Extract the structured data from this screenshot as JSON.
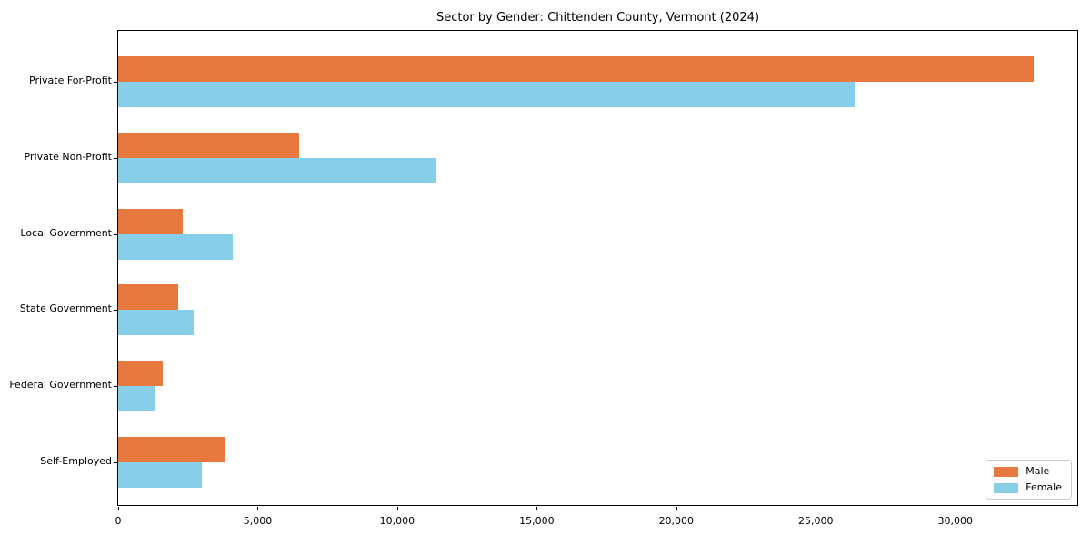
{
  "chart_data": {
    "type": "bar",
    "orientation": "horizontal",
    "title": "Sector by Gender: Chittenden County, Vermont (2024)",
    "categories": [
      "Private For-Profit",
      "Private Non-Profit",
      "Local Government",
      "State Government",
      "Federal Government",
      "Self-Employed"
    ],
    "series": [
      {
        "name": "Male",
        "color": "#e8793e",
        "values": [
          32800,
          6500,
          2300,
          2150,
          1600,
          3800
        ]
      },
      {
        "name": "Female",
        "color": "#87ceeb",
        "values": [
          26400,
          11400,
          4100,
          2700,
          1300,
          3000
        ]
      }
    ],
    "xlabel": "",
    "ylabel": "",
    "xlim": [
      0,
      34440
    ],
    "xticks": [
      0,
      5000,
      10000,
      15000,
      20000,
      25000,
      30000
    ],
    "xtick_labels": [
      "0",
      "5,000",
      "10,000",
      "15,000",
      "20,000",
      "25,000",
      "30,000"
    ],
    "legend_position": "lower right",
    "legend_entries": [
      "Male",
      "Female"
    ],
    "grid": false,
    "background_color": "#ffffff",
    "spine_color": "#000000"
  }
}
